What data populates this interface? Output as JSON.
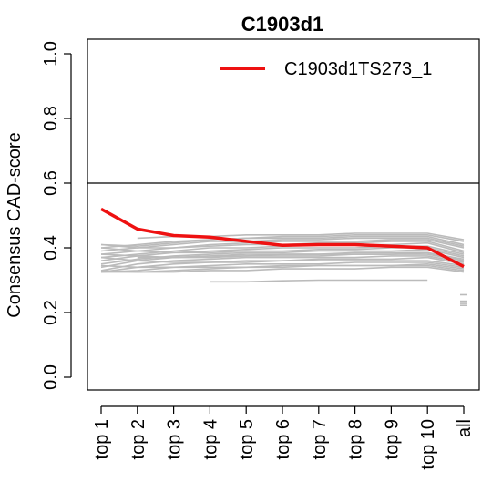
{
  "chart_data": {
    "type": "line",
    "title": "C1903d1",
    "xlabel": "",
    "ylabel": "Consensus CAD-score",
    "categories": [
      "top 1",
      "top 2",
      "top 3",
      "top 4",
      "top 5",
      "top 6",
      "top 7",
      "top 8",
      "top 9",
      "top 10",
      "all"
    ],
    "ylim": [
      0,
      1
    ],
    "yticks": [
      0.0,
      0.2,
      0.4,
      0.6,
      0.8,
      1.0
    ],
    "ytick_labels": [
      "0.0",
      "0.2",
      "0.4",
      "0.6",
      "0.8",
      "1.0"
    ],
    "reference_line": 0.6,
    "grid": false,
    "legend_position": "top-right",
    "highlight_color": "#ee1111",
    "background_color": "#bbbbbb",
    "series": [
      {
        "name": "C1903d1TS273_1",
        "highlight": true,
        "values": [
          0.52,
          0.458,
          0.438,
          0.433,
          0.42,
          0.408,
          0.41,
          0.41,
          0.405,
          0.4,
          0.342
        ]
      }
    ],
    "background_series": [
      {
        "values": [
          0.41,
          0.405,
          0.415,
          0.425,
          0.43,
          0.435,
          0.435,
          0.44,
          0.44,
          0.44,
          0.42
        ]
      },
      {
        "values": [
          0.4,
          0.41,
          0.42,
          0.425,
          0.43,
          0.43,
          0.43,
          0.435,
          0.435,
          0.435,
          0.41
        ]
      },
      {
        "values": [
          0.39,
          0.4,
          0.41,
          0.42,
          0.42,
          0.425,
          0.425,
          0.43,
          0.43,
          0.43,
          0.405
        ]
      },
      {
        "values": [
          0.38,
          0.39,
          0.4,
          0.41,
          0.415,
          0.42,
          0.42,
          0.42,
          0.425,
          0.425,
          0.4
        ]
      },
      {
        "values": [
          0.41,
          0.4,
          0.4,
          0.405,
          0.41,
          0.41,
          0.415,
          0.415,
          0.42,
          0.42,
          0.39
        ]
      },
      {
        "values": [
          0.37,
          0.38,
          0.39,
          0.4,
          0.4,
          0.405,
          0.41,
          0.41,
          0.41,
          0.415,
          0.385
        ]
      },
      {
        "values": [
          0.36,
          0.375,
          0.385,
          0.39,
          0.395,
          0.4,
          0.4,
          0.4,
          0.405,
          0.405,
          0.38
        ]
      },
      {
        "values": [
          0.4,
          0.39,
          0.385,
          0.385,
          0.39,
          0.39,
          0.395,
          0.395,
          0.4,
          0.4,
          0.375
        ]
      },
      {
        "values": [
          0.35,
          0.365,
          0.375,
          0.38,
          0.385,
          0.385,
          0.39,
          0.39,
          0.39,
          0.395,
          0.37
        ]
      },
      {
        "values": [
          0.34,
          0.36,
          0.37,
          0.375,
          0.38,
          0.38,
          0.38,
          0.385,
          0.385,
          0.385,
          0.365
        ]
      },
      {
        "values": [
          0.38,
          0.375,
          0.37,
          0.37,
          0.375,
          0.375,
          0.375,
          0.38,
          0.38,
          0.38,
          0.36
        ]
      },
      {
        "values": [
          0.33,
          0.35,
          0.36,
          0.365,
          0.37,
          0.37,
          0.37,
          0.37,
          0.375,
          0.375,
          0.355
        ]
      },
      {
        "values": [
          0.325,
          0.34,
          0.35,
          0.355,
          0.36,
          0.36,
          0.365,
          0.365,
          0.365,
          0.37,
          0.35
        ]
      },
      {
        "values": [
          0.37,
          0.36,
          0.355,
          0.355,
          0.355,
          0.36,
          0.36,
          0.36,
          0.36,
          0.36,
          0.345
        ]
      },
      {
        "values": [
          0.325,
          0.33,
          0.34,
          0.345,
          0.35,
          0.35,
          0.35,
          0.355,
          0.355,
          0.355,
          0.34
        ]
      },
      {
        "values": [
          0.325,
          0.325,
          0.33,
          0.335,
          0.34,
          0.34,
          0.345,
          0.345,
          0.345,
          0.35,
          0.335
        ]
      },
      {
        "values": [
          0.345,
          0.34,
          0.34,
          0.34,
          0.34,
          0.345,
          0.345,
          0.345,
          0.345,
          0.345,
          0.33
        ]
      },
      {
        "values": [
          0.33,
          0.325,
          0.325,
          0.33,
          0.33,
          0.335,
          0.335,
          0.335,
          0.34,
          0.34,
          0.325
        ]
      },
      {
        "values": [
          null,
          0.43,
          0.435,
          0.435,
          0.44,
          0.44,
          0.44,
          0.445,
          0.445,
          0.445,
          0.425
        ]
      },
      {
        "values": [
          null,
          0.37,
          0.37,
          0.375,
          0.375,
          0.38,
          0.38,
          0.38,
          0.38,
          0.385,
          0.36
        ]
      },
      {
        "values": [
          null,
          null,
          null,
          0.295,
          0.295,
          0.298,
          0.3,
          0.3,
          0.3,
          0.3,
          null
        ]
      }
    ],
    "all_extra_points": [
      0.255,
      0.235,
      0.228,
      0.222
    ]
  }
}
